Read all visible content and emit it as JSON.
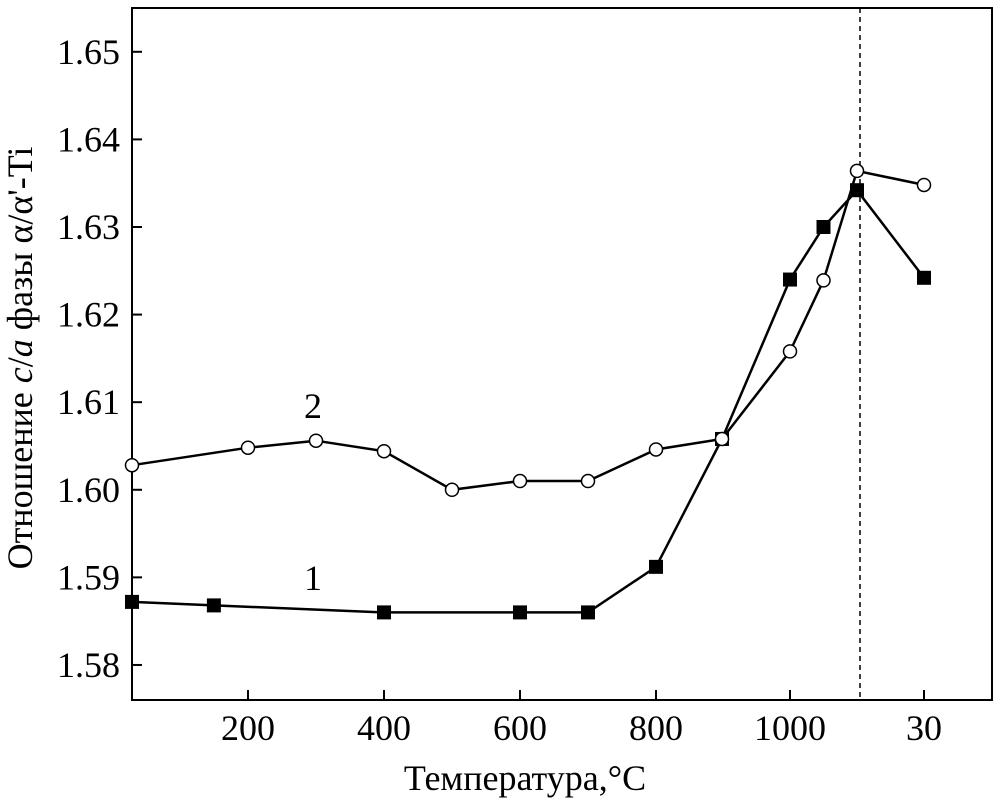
{
  "chart_data": {
    "type": "line",
    "xlabel": "Температура,°C",
    "ylabel_parts": [
      "Отношение ",
      "c",
      "/",
      "a",
      " фазы α/α'-Ti"
    ],
    "x_tick_labels": [
      "200",
      "400",
      "600",
      "800",
      "1000",
      "30"
    ],
    "y_tick_labels": [
      "1.58",
      "1.59",
      "1.60",
      "1.61",
      "1.62",
      "1.63",
      "1.64",
      "1.65"
    ],
    "y_ticks": [
      1.58,
      1.59,
      1.6,
      1.61,
      1.62,
      1.63,
      1.64,
      1.65
    ],
    "ylim": [
      1.576,
      1.655
    ],
    "reference_line": {
      "style": "dashed",
      "x_position": "after 1100"
    },
    "grid": false,
    "series": [
      {
        "name": "1",
        "marker": "filled-square",
        "x": [
          30,
          150,
          400,
          600,
          700,
          800,
          900,
          1000,
          1050,
          1100,
          "30"
        ],
        "y": [
          1.5872,
          1.5868,
          1.586,
          1.586,
          1.586,
          1.5912,
          1.6058,
          1.624,
          1.63,
          1.6342,
          1.6242
        ]
      },
      {
        "name": "2",
        "marker": "open-circle",
        "x": [
          30,
          200,
          300,
          400,
          500,
          600,
          700,
          800,
          900,
          1000,
          1050,
          1100,
          "30"
        ],
        "y": [
          1.6028,
          1.6048,
          1.6056,
          1.6044,
          1.6,
          1.601,
          1.601,
          1.6046,
          1.6058,
          1.6158,
          1.6239,
          1.6364,
          1.6348
        ]
      }
    ]
  }
}
